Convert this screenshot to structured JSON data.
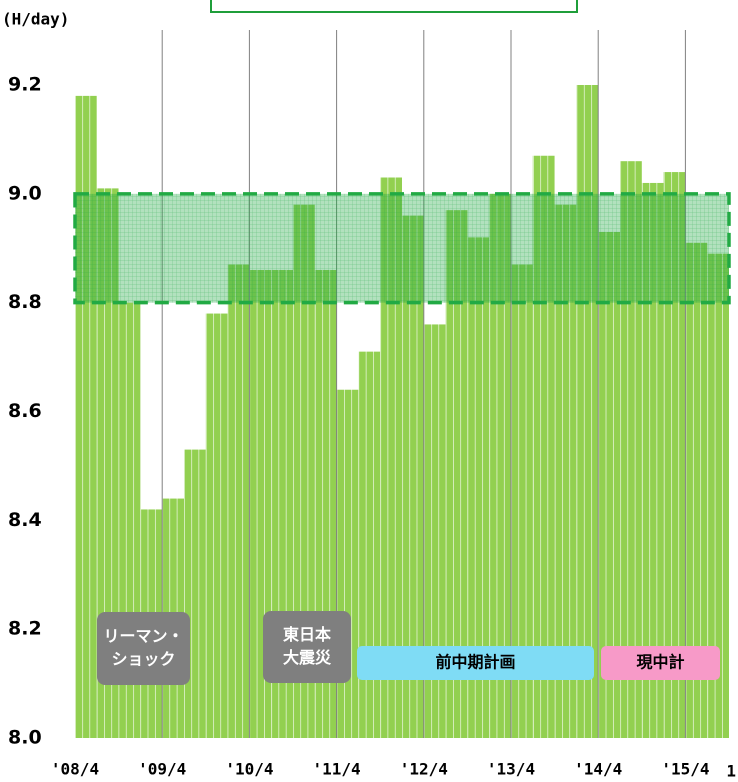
{
  "chart_data": {
    "type": "bar",
    "y_label": "(H/day)",
    "categories": [
      "'08/4",
      null,
      null,
      null,
      "'09/4",
      null,
      null,
      null,
      "'10/4",
      null,
      null,
      null,
      "'11/4",
      null,
      null,
      null,
      "'12/4",
      null,
      null,
      null,
      "'13/4",
      null,
      null,
      null,
      "'14/4",
      null,
      null,
      null,
      "'15/4",
      null
    ],
    "values": [
      9.18,
      9.01,
      8.8,
      8.42,
      8.44,
      8.53,
      8.78,
      8.87,
      8.86,
      8.86,
      8.98,
      8.86,
      8.64,
      8.71,
      9.03,
      8.96,
      8.76,
      8.97,
      8.92,
      9.0,
      8.87,
      9.07,
      8.98,
      9.2,
      8.93,
      9.06,
      9.02,
      9.04,
      8.91,
      8.89
    ],
    "color": "#92d050",
    "edge_label": "1",
    "ylim": [
      8.0,
      9.2
    ],
    "yticks": [
      {
        "value": 8.0,
        "label": "8.0"
      },
      {
        "value": 8.2,
        "label": "8.2"
      },
      {
        "value": 8.4,
        "label": "8.4"
      },
      {
        "value": 8.6,
        "label": "8.6"
      },
      {
        "value": 8.8,
        "label": "8.8"
      },
      {
        "value": 9.0,
        "label": "9.0"
      },
      {
        "value": 9.2,
        "label": "9.2"
      }
    ],
    "target_band": [
      8.8,
      9.0
    ],
    "band_color": "#22aa44",
    "annotations": [
      {
        "lines": [
          "リーマン・",
          "ショック"
        ],
        "color": "#7f7f7f",
        "text_color": "#ffffff"
      },
      {
        "lines": [
          "東日本",
          "大震災"
        ],
        "color": "#7f7f7f",
        "text_color": "#ffffff"
      },
      {
        "lines": [
          "前中期計画"
        ],
        "color": "#7fdcf5",
        "text_color": "#000000"
      },
      {
        "lines": [
          "現中計"
        ],
        "color": "#f79ac8",
        "text_color": "#000000"
      }
    ]
  }
}
